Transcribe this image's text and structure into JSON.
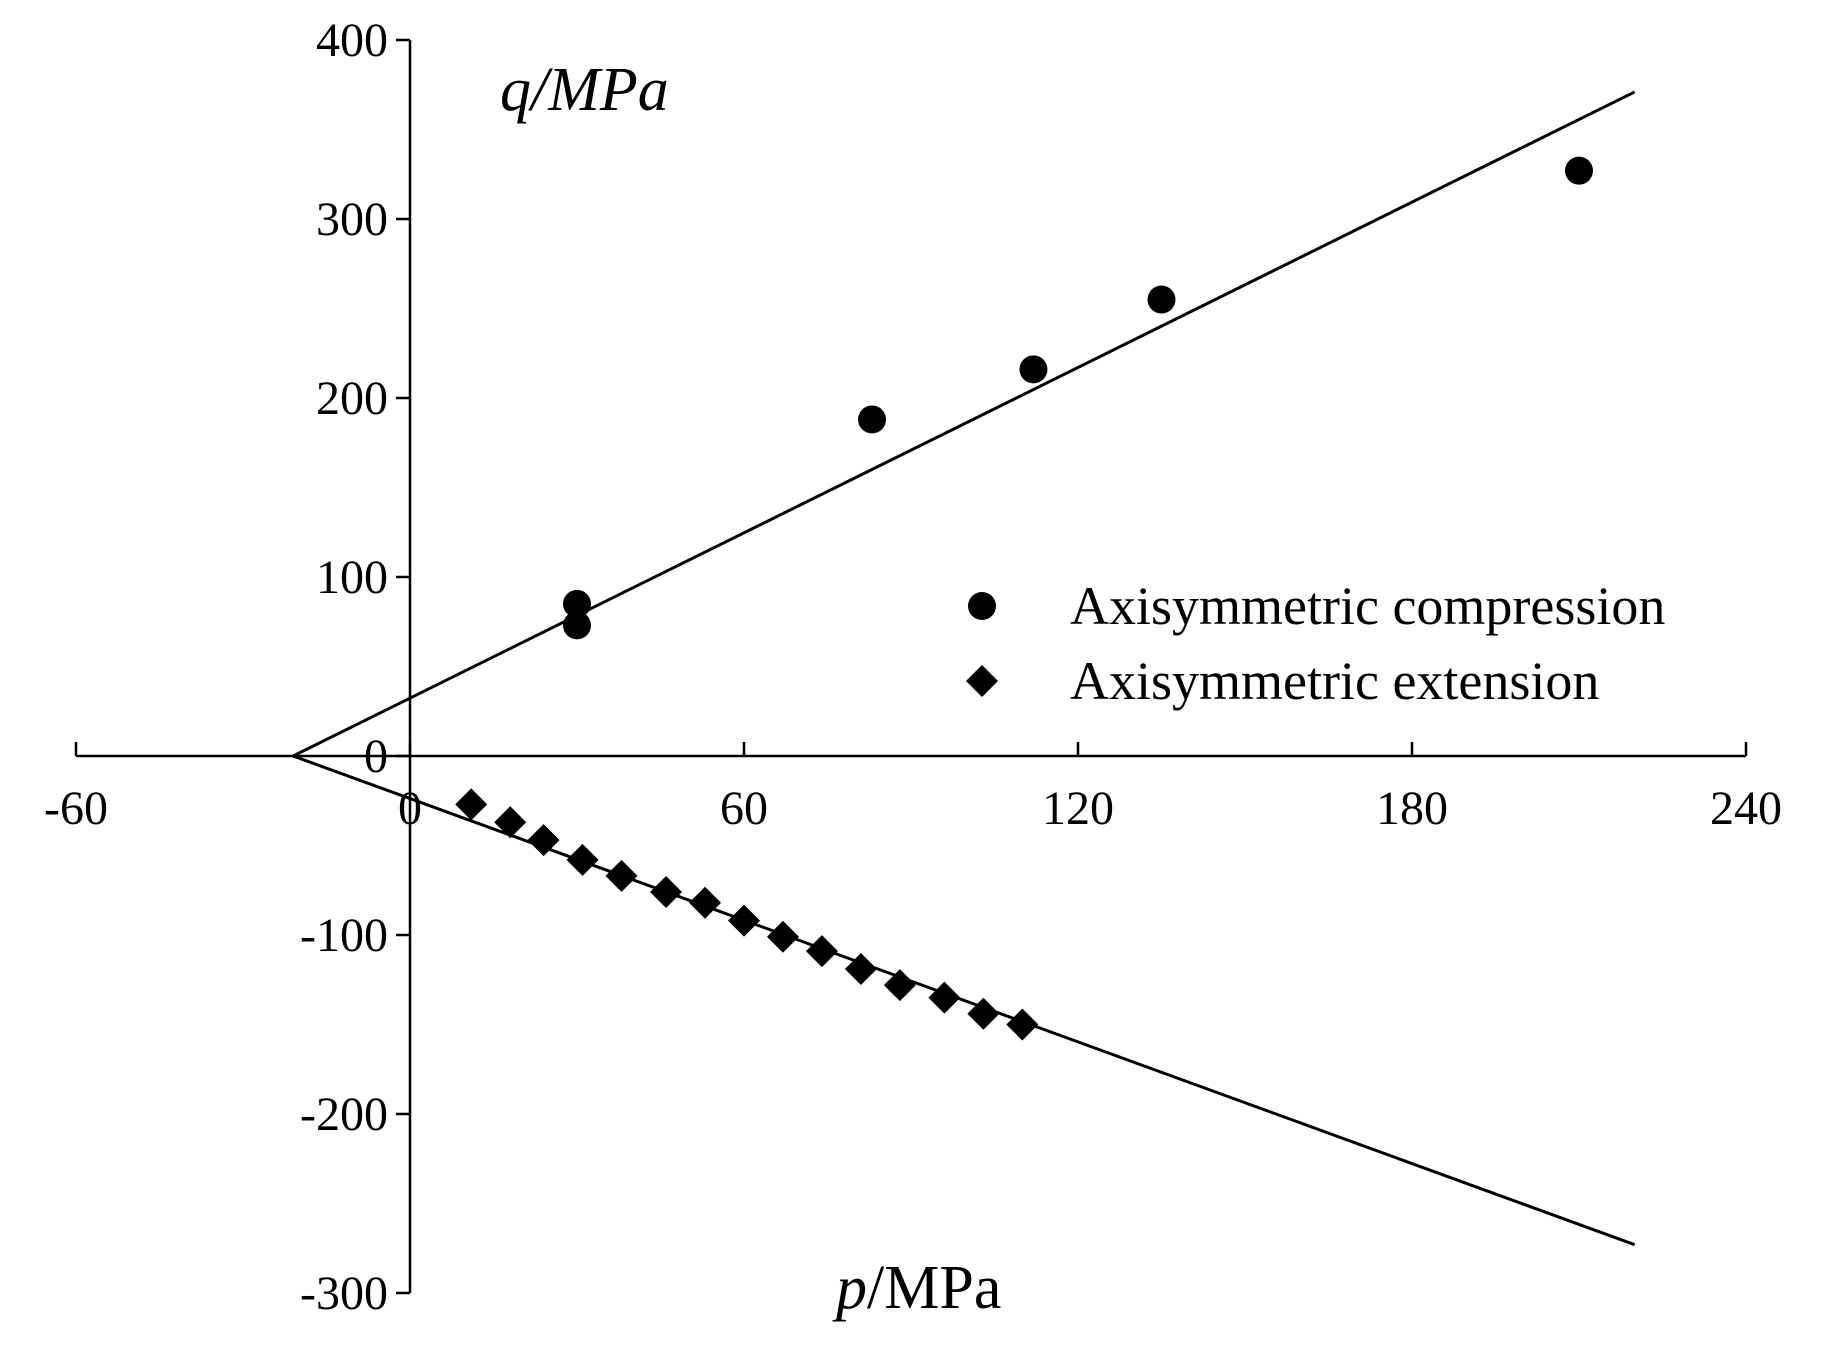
{
  "chart_data": {
    "type": "scatter",
    "title": "",
    "xlabel": {
      "italic": "p",
      "plain": "/MPa"
    },
    "ylabel": {
      "italic": "q/MPa",
      "plain": ""
    },
    "xlim": [
      -60,
      240
    ],
    "ylim": [
      -300,
      400
    ],
    "x_ticks": [
      -60,
      0,
      60,
      120,
      180,
      240
    ],
    "y_ticks": [
      -300,
      -200,
      -100,
      0,
      100,
      200,
      300,
      400
    ],
    "grid": false,
    "legend_position": "right, above the horizontal axis",
    "series": [
      {
        "name": "Axisymmetric compression",
        "marker": "circle",
        "color": "#000000",
        "points": [
          {
            "x": 30,
            "y": 85
          },
          {
            "x": 30,
            "y": 73
          },
          {
            "x": 83,
            "y": 188
          },
          {
            "x": 112,
            "y": 216
          },
          {
            "x": 135,
            "y": 255
          },
          {
            "x": 210,
            "y": 327
          }
        ]
      },
      {
        "name": "Axisymmetric extension",
        "marker": "diamond",
        "color": "#000000",
        "points": [
          {
            "x": 11,
            "y": -27
          },
          {
            "x": 18,
            "y": -37
          },
          {
            "x": 24,
            "y": -47
          },
          {
            "x": 31,
            "y": -58
          },
          {
            "x": 38,
            "y": -67
          },
          {
            "x": 46,
            "y": -76
          },
          {
            "x": 53,
            "y": -82
          },
          {
            "x": 60,
            "y": -92
          },
          {
            "x": 67,
            "y": -101
          },
          {
            "x": 74,
            "y": -109
          },
          {
            "x": 81,
            "y": -119
          },
          {
            "x": 88,
            "y": -128
          },
          {
            "x": 96,
            "y": -135
          },
          {
            "x": 103,
            "y": -144
          },
          {
            "x": 110,
            "y": -150
          }
        ]
      }
    ],
    "fit_lines": [
      {
        "label": "compression envelope",
        "from": {
          "x": -21,
          "y": 0
        },
        "to": {
          "x": 220,
          "y": 371
        }
      },
      {
        "label": "extension envelope",
        "from": {
          "x": -21,
          "y": 0
        },
        "to": {
          "x": 220,
          "y": -273
        }
      }
    ]
  }
}
